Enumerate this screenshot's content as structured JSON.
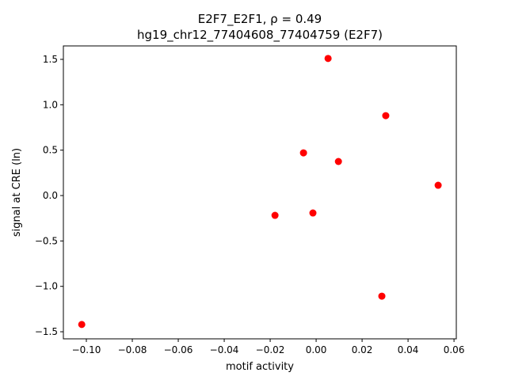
{
  "chart_data": {
    "type": "scatter",
    "title": "E2F7_E2F1, ρ = 0.49",
    "subtitle": "hg19_chr12_77404608_77404759 (E2F7)",
    "x_label": "motif activity",
    "y_label": "signal at CRE (ln)",
    "color": "#ff0000",
    "x": [
      -0.102,
      0.0052,
      0.0303,
      -0.0055,
      0.0097,
      0.0531,
      -0.0179,
      -0.0014,
      0.0286
    ],
    "values": [
      -1.42,
      1.51,
      0.88,
      0.47,
      0.375,
      0.113,
      -0.218,
      -0.192,
      -1.108
    ],
    "xlim": [
      -0.11,
      0.061
    ],
    "ylim": [
      -1.578,
      1.648
    ],
    "xticks": [
      {
        "value": -0.1,
        "label": "−0.10"
      },
      {
        "value": -0.08,
        "label": "−0.08"
      },
      {
        "value": -0.06,
        "label": "−0.06"
      },
      {
        "value": -0.04,
        "label": "−0.04"
      },
      {
        "value": -0.02,
        "label": "−0.02"
      },
      {
        "value": 0,
        "label": "0.00"
      },
      0.02,
      0.04,
      0.06
    ],
    "yticks": [
      {
        "value": -1.5,
        "label": "−1.5"
      },
      {
        "value": -1,
        "label": "−1.0"
      },
      {
        "value": -0.5,
        "label": "−0.5"
      },
      {
        "value": 0,
        "label": "0.0"
      },
      0.5,
      {
        "value": 1,
        "label": "1.0"
      },
      1.5
    ]
  }
}
